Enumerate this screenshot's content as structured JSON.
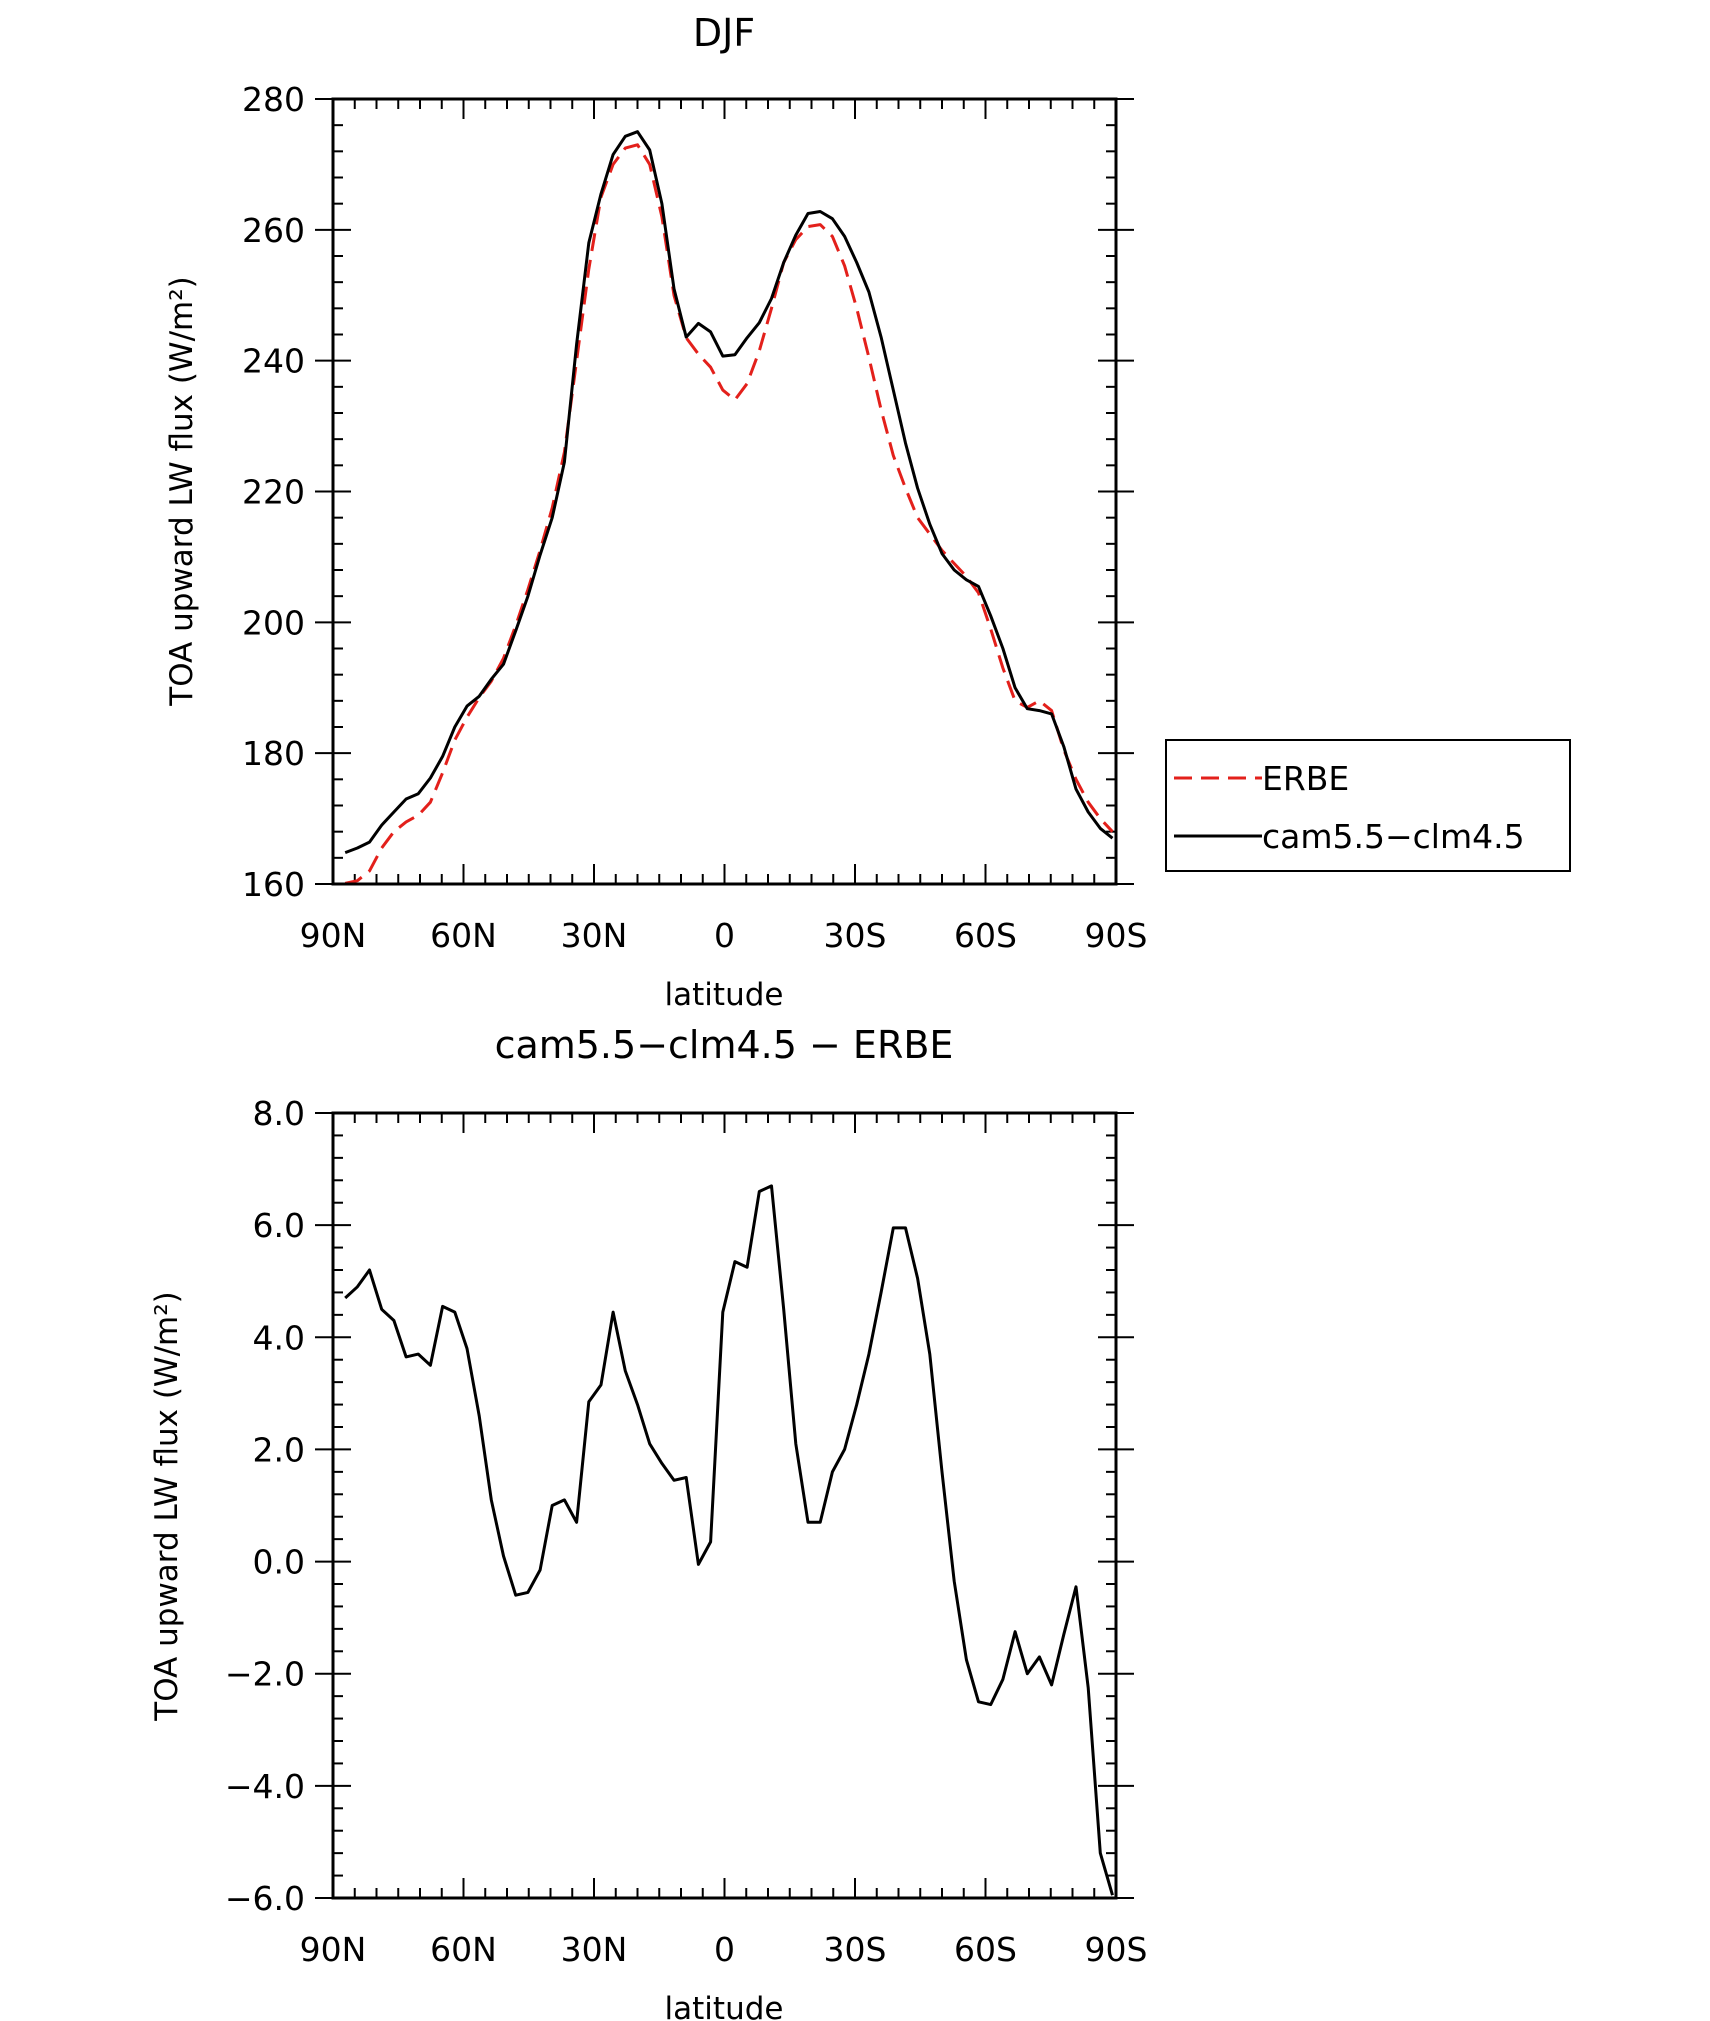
{
  "chart_data": [
    {
      "type": "line",
      "title": "DJF",
      "xlabel": "latitude",
      "ylabel": "TOA upward LW flux (W/m²)",
      "xlim": [
        90,
        -90
      ],
      "ylim": [
        160,
        280
      ],
      "x_ticks": [
        90,
        60,
        30,
        0,
        -30,
        -60,
        -90
      ],
      "x_tick_labels": [
        "90N",
        "60N",
        "30N",
        "0",
        "30S",
        "60S",
        "90S"
      ],
      "y_ticks": [
        160,
        180,
        200,
        220,
        240,
        260,
        280
      ],
      "y_tick_labels": [
        "160",
        "180",
        "200",
        "220",
        "240",
        "260",
        "280"
      ],
      "legend_position": "right",
      "x": [
        87.2,
        84.4,
        81.6,
        78.8,
        76.0,
        73.2,
        70.4,
        67.6,
        64.8,
        62.0,
        59.2,
        56.4,
        53.6,
        50.8,
        48.0,
        45.2,
        42.4,
        39.6,
        36.8,
        34.0,
        31.2,
        28.4,
        25.6,
        22.8,
        20.0,
        17.2,
        14.4,
        11.6,
        8.8,
        6.0,
        3.2,
        0.4,
        -2.4,
        -5.2,
        -8.0,
        -10.8,
        -13.6,
        -16.4,
        -19.2,
        -22.0,
        -24.8,
        -27.6,
        -30.4,
        -33.2,
        -36.0,
        -38.8,
        -41.6,
        -44.4,
        -47.2,
        -50.0,
        -52.8,
        -55.6,
        -58.4,
        -61.2,
        -64.0,
        -66.8,
        -69.6,
        -72.4,
        -75.2,
        -78.0,
        -80.8,
        -83.6,
        -86.4,
        -89.2
      ],
      "series": [
        {
          "name": "ERBE",
          "color": "#e3201b",
          "dash": "dashed",
          "values": [
            160.1,
            160.5,
            162.0,
            165.5,
            168.0,
            169.5,
            170.5,
            172.5,
            177.0,
            182.0,
            185.5,
            188.5,
            191.0,
            194.5,
            199.5,
            205.0,
            211.0,
            217.5,
            226.0,
            240.0,
            254.0,
            265.0,
            270.0,
            272.5,
            273.0,
            270.0,
            262.0,
            250.0,
            243.5,
            241.0,
            239.0,
            235.5,
            234.0,
            236.5,
            241.5,
            248.0,
            255.0,
            258.5,
            260.5,
            260.8,
            259.0,
            254.5,
            248.0,
            240.5,
            232.5,
            225.5,
            220.5,
            216.0,
            213.5,
            211.0,
            209.0,
            207.0,
            204.5,
            199.0,
            193.0,
            188.0,
            187.0,
            188.0,
            186.5,
            180.5,
            176.0,
            172.5,
            170.0,
            168.0
          ]
        },
        {
          "name": "cam5.5−clm4.5",
          "color": "#000000",
          "dash": "solid",
          "values": [
            164.8,
            165.5,
            166.4,
            169.0,
            171.0,
            173.0,
            173.8,
            176.2,
            179.5,
            184.0,
            187.2,
            188.7,
            191.3,
            193.6,
            198.7,
            204.0,
            210.3,
            216.0,
            224.5,
            242.5,
            258.0,
            265.5,
            271.5,
            274.3,
            275.0,
            272.2,
            264.0,
            251.0,
            243.6,
            245.7,
            244.4,
            240.7,
            240.9,
            243.5,
            245.8,
            249.5,
            255.0,
            259.2,
            262.5,
            262.8,
            261.7,
            259.0,
            255.0,
            250.5,
            243.6,
            235.5,
            227.4,
            220.5,
            215.0,
            210.5,
            208.0,
            206.5,
            205.5,
            201.0,
            196.0,
            190.0,
            186.8,
            186.5,
            186.0,
            181.0,
            174.5,
            171.0,
            168.5,
            167.0
          ]
        }
      ]
    },
    {
      "type": "line",
      "title": "cam5.5−clm4.5 − ERBE",
      "xlabel": "latitude",
      "ylabel": "TOA upward LW flux (W/m²)",
      "xlim": [
        90,
        -90
      ],
      "ylim": [
        -6.0,
        8.0
      ],
      "x_ticks": [
        90,
        60,
        30,
        0,
        -30,
        -60,
        -90
      ],
      "x_tick_labels": [
        "90N",
        "60N",
        "30N",
        "0",
        "30S",
        "60S",
        "90S"
      ],
      "y_ticks": [
        -6.0,
        -4.0,
        -2.0,
        0.0,
        2.0,
        4.0,
        6.0,
        8.0
      ],
      "y_tick_labels": [
        "−6.0",
        "−4.0",
        "−2.0",
        "0.0",
        "2.0",
        "4.0",
        "6.0",
        "8.0"
      ],
      "x": [
        87.2,
        84.4,
        81.6,
        78.8,
        76.0,
        73.2,
        70.4,
        67.6,
        64.8,
        62.0,
        59.2,
        56.4,
        53.6,
        50.8,
        48.0,
        45.2,
        42.4,
        39.6,
        36.8,
        34.0,
        31.2,
        28.4,
        25.6,
        22.8,
        20.0,
        17.2,
        14.4,
        11.6,
        8.8,
        6.0,
        3.2,
        0.4,
        -2.4,
        -5.2,
        -8.0,
        -10.8,
        -13.6,
        -16.4,
        -19.2,
        -22.0,
        -24.8,
        -27.6,
        -30.4,
        -33.2,
        -36.0,
        -38.8,
        -41.6,
        -44.4,
        -47.2,
        -50.0,
        -52.8,
        -55.6,
        -58.4,
        -61.2,
        -64.0,
        -66.8,
        -69.6,
        -72.4,
        -75.2,
        -78.0,
        -80.8,
        -83.6,
        -86.4,
        -89.2
      ],
      "series": [
        {
          "color": "#000000",
          "dash": "solid",
          "values": [
            4.7,
            4.9,
            5.2,
            4.5,
            4.3,
            3.65,
            3.7,
            3.5,
            4.55,
            4.45,
            3.8,
            2.6,
            1.1,
            0.1,
            -0.6,
            -0.55,
            -0.15,
            1.0,
            1.1,
            0.7,
            2.85,
            3.15,
            4.45,
            3.4,
            2.8,
            2.1,
            1.75,
            1.45,
            1.5,
            -0.05,
            0.35,
            4.45,
            5.35,
            5.25,
            6.6,
            6.7,
            4.5,
            2.1,
            0.7,
            0.7,
            1.6,
            2.0,
            2.8,
            3.7,
            4.8,
            5.95,
            5.95,
            5.05,
            3.7,
            1.6,
            -0.35,
            -1.75,
            -2.5,
            -2.55,
            -2.1,
            -1.25,
            -2.0,
            -1.7,
            -2.2,
            -1.3,
            -0.45,
            -2.25,
            -5.2,
            -5.95
          ]
        }
      ]
    }
  ]
}
